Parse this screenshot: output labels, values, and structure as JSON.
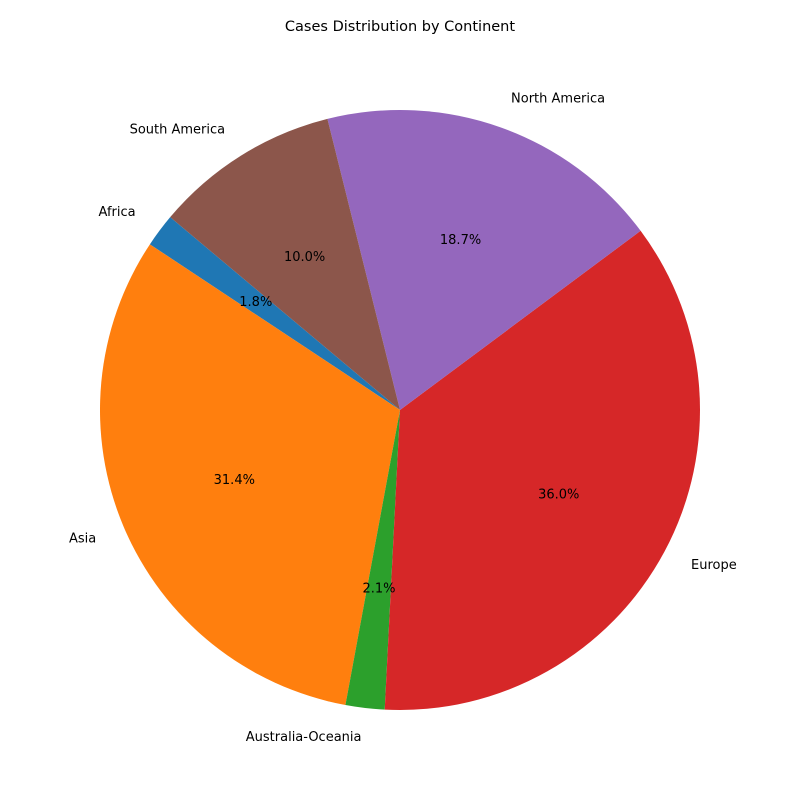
{
  "chart_data": {
    "type": "pie",
    "title": "Cases Distribution by Continent",
    "categories": [
      "Africa",
      "Asia",
      "Australia-Oceania",
      "Europe",
      "North America",
      "South America"
    ],
    "values": [
      1.8,
      31.4,
      2.1,
      36.0,
      18.7,
      10.0
    ],
    "value_labels": [
      "1.8%",
      "31.4%",
      "2.1%",
      "36.0%",
      "18.7%",
      "10.0%"
    ],
    "colors": [
      "#1f77b4",
      "#ff7f0e",
      "#2ca02c",
      "#d62728",
      "#9467bd",
      "#8c564b"
    ],
    "start_angle_deg": 140,
    "direction": "counterclockwise",
    "legend": "none"
  }
}
